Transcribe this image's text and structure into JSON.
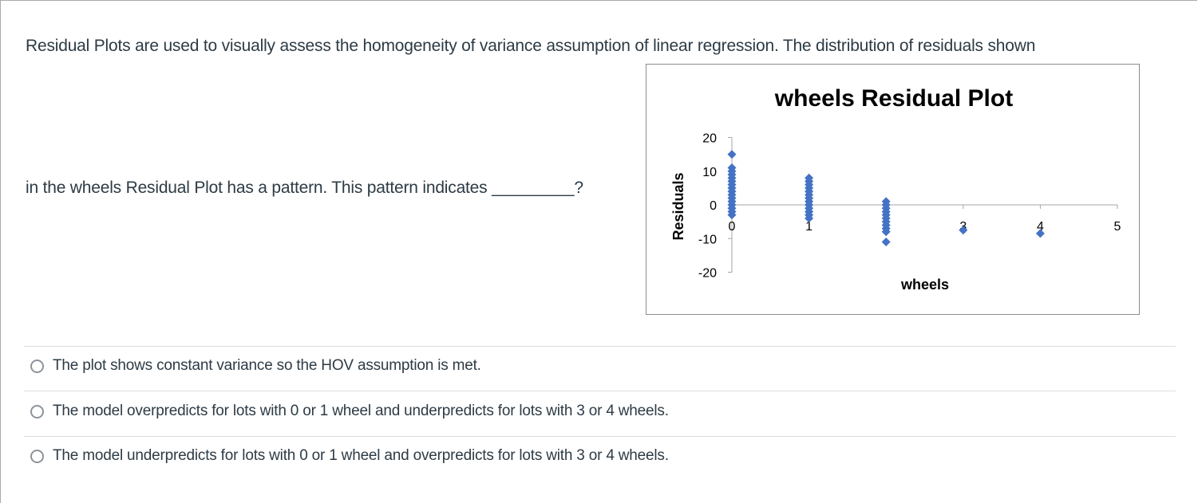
{
  "question": {
    "line1": "Residual Plots are used to visually assess the homogeneity of variance assumption of linear regression. The distribution of residuals shown",
    "line2": "in the wheels Residual Plot has a pattern. This pattern indicates _________?"
  },
  "options": [
    {
      "label": "The plot shows constant variance so the HOV assumption is met.",
      "selected": false
    },
    {
      "label": "The model overpredicts for lots with 0 or 1 wheel and underpredicts for lots with 3 or 4 wheels.",
      "selected": false
    },
    {
      "label": "The model underpredicts for lots with 0 or 1 wheel and overpredicts for lots with 3 or 4 wheels.",
      "selected": false
    }
  ],
  "colors": {
    "marker": "#4472c4",
    "axis": "#a6a6a6",
    "text": "#2d3b45"
  },
  "chart_data": {
    "type": "scatter",
    "title": "wheels  Residual Plot",
    "xlabel": "wheels",
    "ylabel": "Residuals",
    "xlim": [
      0,
      5
    ],
    "ylim": [
      -20,
      20
    ],
    "x_ticks": [
      "0",
      "1",
      "2",
      "3",
      "4",
      "5"
    ],
    "y_ticks": [
      "20",
      "10",
      "0",
      "-10",
      "-20"
    ],
    "grid": false,
    "legend": "none",
    "marker": "diamond",
    "series": [
      {
        "name": "Residuals",
        "points": [
          {
            "x": 0,
            "y": 15
          },
          {
            "x": 0,
            "y": 11
          },
          {
            "x": 0,
            "y": 10
          },
          {
            "x": 0,
            "y": 9
          },
          {
            "x": 0,
            "y": 8
          },
          {
            "x": 0,
            "y": 7
          },
          {
            "x": 0,
            "y": 6
          },
          {
            "x": 0,
            "y": 5
          },
          {
            "x": 0,
            "y": 4
          },
          {
            "x": 0,
            "y": 3
          },
          {
            "x": 0,
            "y": 2
          },
          {
            "x": 0,
            "y": 1
          },
          {
            "x": 0,
            "y": 0
          },
          {
            "x": 0,
            "y": -1
          },
          {
            "x": 0,
            "y": -2
          },
          {
            "x": 0,
            "y": -3
          },
          {
            "x": 1,
            "y": 8
          },
          {
            "x": 1,
            "y": 7
          },
          {
            "x": 1,
            "y": 6
          },
          {
            "x": 1,
            "y": 5
          },
          {
            "x": 1,
            "y": 4
          },
          {
            "x": 1,
            "y": 3
          },
          {
            "x": 1,
            "y": 2
          },
          {
            "x": 1,
            "y": 1
          },
          {
            "x": 1,
            "y": 0
          },
          {
            "x": 1,
            "y": -1
          },
          {
            "x": 1,
            "y": -2
          },
          {
            "x": 1,
            "y": -3
          },
          {
            "x": 1,
            "y": -4
          },
          {
            "x": 2,
            "y": 1
          },
          {
            "x": 2,
            "y": 0
          },
          {
            "x": 2,
            "y": -1
          },
          {
            "x": 2,
            "y": -2
          },
          {
            "x": 2,
            "y": -3
          },
          {
            "x": 2,
            "y": -4
          },
          {
            "x": 2,
            "y": -5
          },
          {
            "x": 2,
            "y": -6
          },
          {
            "x": 2,
            "y": -7
          },
          {
            "x": 2,
            "y": -8
          },
          {
            "x": 2,
            "y": -11
          },
          {
            "x": 3,
            "y": -7.5
          },
          {
            "x": 4,
            "y": -8.5
          }
        ]
      }
    ]
  }
}
